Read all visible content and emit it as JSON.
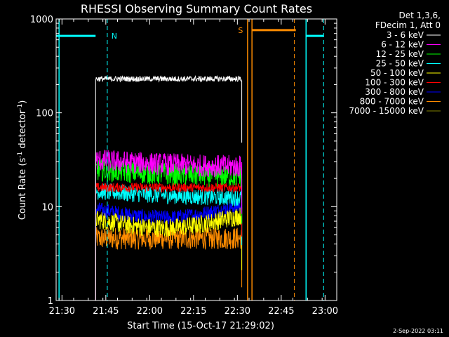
{
  "chart_data": {
    "type": "line",
    "title": "RHESSI Observing Summary Count Rates",
    "xlabel": "Start Time (15-Oct-17 21:29:02)",
    "ylabel": "Count Rate (s",
    "ylabel_sup1": "-1",
    "ylabel_mid": " detector",
    "ylabel_sup2": "-1",
    "ylabel_end": ")",
    "yscale": "log",
    "ylim": [
      1,
      1000
    ],
    "xlim_min": [
      -1,
      95
    ],
    "x_unit": "minutes after 21:29:02",
    "x_ticks": [
      {
        "label": "21:30",
        "min": 1
      },
      {
        "label": "21:45",
        "min": 16
      },
      {
        "label": "22:00",
        "min": 31
      },
      {
        "label": "22:15",
        "min": 46
      },
      {
        "label": "22:30",
        "min": 61
      },
      {
        "label": "22:45",
        "min": 76
      },
      {
        "label": "23:00",
        "min": 91
      }
    ],
    "y_ticks": [
      {
        "label": "1000",
        "value": 1000
      },
      {
        "label": "100",
        "value": 100
      },
      {
        "label": "10",
        "value": 10
      },
      {
        "label": "1",
        "value": 1
      }
    ],
    "legend_header": [
      "Det 1,3,6,",
      "FDecim 1, Att 0"
    ],
    "data_window_min": [
      12.5,
      62.5
    ],
    "series": [
      {
        "name": "3 - 6 keV",
        "color": "#ffffff",
        "level": 230,
        "noise": 0.03,
        "shape": "flat"
      },
      {
        "name": "6 - 12 keV",
        "color": "#ff00ff",
        "level": 28,
        "noise": 0.12,
        "shape": "decay"
      },
      {
        "name": "12 - 25 keV",
        "color": "#00ff00",
        "level": 22,
        "noise": 0.12,
        "shape": "decay"
      },
      {
        "name": "25 - 50 keV",
        "color": "#00ffff",
        "level": 13,
        "noise": 0.09,
        "shape": "decay"
      },
      {
        "name": "50 - 100 keV",
        "color": "#ffff00",
        "level": 7,
        "noise": 0.1,
        "shape": "dip"
      },
      {
        "name": "100 - 300 keV",
        "color": "#ff0000",
        "level": 16,
        "noise": 0.05,
        "shape": "flat"
      },
      {
        "name": "300 - 800 keV",
        "color": "#0000ff",
        "level": 9,
        "noise": 0.08,
        "shape": "dip"
      },
      {
        "name": "800 - 7000 keV",
        "color": "#ff8c00",
        "level": 4.6,
        "noise": 0.12,
        "shape": "flat"
      },
      {
        "name": "7000 - 15000 keV",
        "color": "#808000",
        "level": 4,
        "noise": 0.05,
        "shape": "hidden"
      }
    ],
    "annotations": [
      {
        "label": "N",
        "color": "#00ffff",
        "bar_min": [
          -1,
          12.5
        ],
        "bar_value": 660,
        "dash_min": 16.5,
        "solid_min": [
          0,
          84.5
        ],
        "dash2_min": 90.5,
        "bar2_min": [
          84.5,
          90.5
        ]
      },
      {
        "label": "S",
        "color": "#ff8c00",
        "bar_min": [
          66,
          81
        ],
        "bar_value": 760,
        "solid_min": [
          64.5,
          66
        ],
        "dash_min": 80.5
      }
    ]
  },
  "footer_date": "2-Sep-2022 03:11"
}
